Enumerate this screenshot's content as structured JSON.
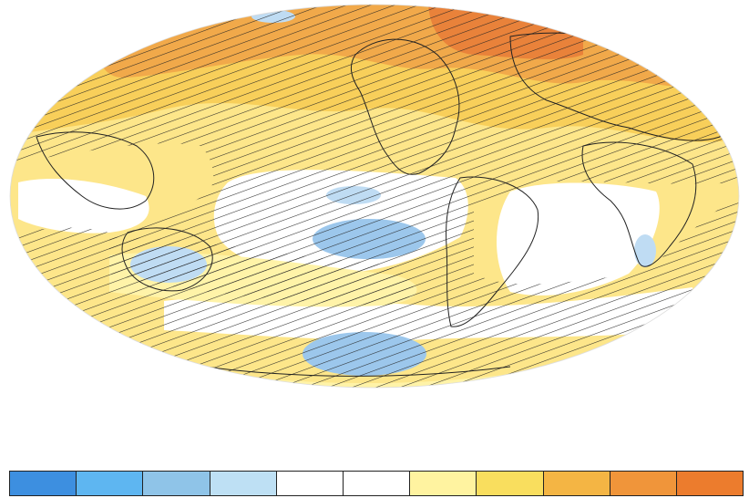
{
  "map": {
    "projection": "mollweide",
    "hatching": true,
    "colors": {
      "ocean_neutral": "#ffffff",
      "light_warm": "#fff3a8",
      "warm": "#fde68a",
      "medium_warm": "#f8cf5a",
      "strong_warm": "#f1a94a",
      "hot": "#e9823a",
      "light_cool": "#bfdcf3",
      "cool": "#9cc7ec",
      "coastline": "#222222",
      "hatch": "#222222"
    }
  },
  "legend": {
    "swatches": [
      "#3d8fe0",
      "#5eb6f1",
      "#8fc4e8",
      "#bee0f4",
      "#ffffff",
      "#ffffff",
      "#fff3a0",
      "#f9de5e",
      "#f4b544",
      "#f0953a",
      "#ec7c2d"
    ]
  }
}
